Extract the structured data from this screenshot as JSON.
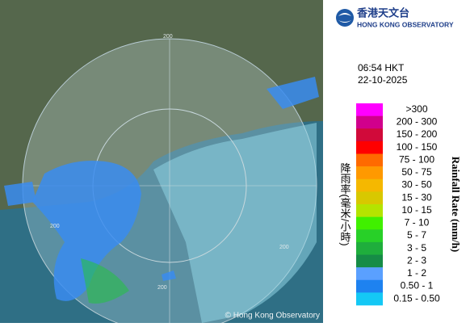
{
  "header": {
    "title_zh": "香港天文台",
    "title_en": "HONG KONG OBSERVATORY"
  },
  "time": "06:54 HKT",
  "date": "22-10-2025",
  "map": {
    "ring_labels": [
      "200",
      "200",
      "200",
      "200"
    ],
    "copyright": "© Hong Kong Observatory"
  },
  "legend": {
    "title_zh": "降雨率(毫米/小時)",
    "title_en": "Rainfall Rate (mm/h)",
    "items": [
      {
        "label": ">300",
        "color": "#ff00ff"
      },
      {
        "label": "200 - 300",
        "color": "#d1008c"
      },
      {
        "label": "150 - 200",
        "color": "#d10a3a"
      },
      {
        "label": "100 - 150",
        "color": "#ff0000"
      },
      {
        "label": "75 - 100",
        "color": "#ff6a00"
      },
      {
        "label": "50 - 75",
        "color": "#ff9900"
      },
      {
        "label": "30 - 50",
        "color": "#f5b800"
      },
      {
        "label": "15 - 30",
        "color": "#d8c800"
      },
      {
        "label": "10 - 15",
        "color": "#b4e400"
      },
      {
        "label": "7 - 10",
        "color": "#40f000"
      },
      {
        "label": "5 - 7",
        "color": "#28d028"
      },
      {
        "label": "3 - 5",
        "color": "#1fae3c"
      },
      {
        "label": "2 - 3",
        "color": "#168c46"
      },
      {
        "label": "1 - 2",
        "color": "#5aa0ff"
      },
      {
        "label": "0.50 - 1",
        "color": "#1e82f0"
      },
      {
        "label": "0.15 - 0.50",
        "color": "#14c8f5"
      }
    ]
  }
}
